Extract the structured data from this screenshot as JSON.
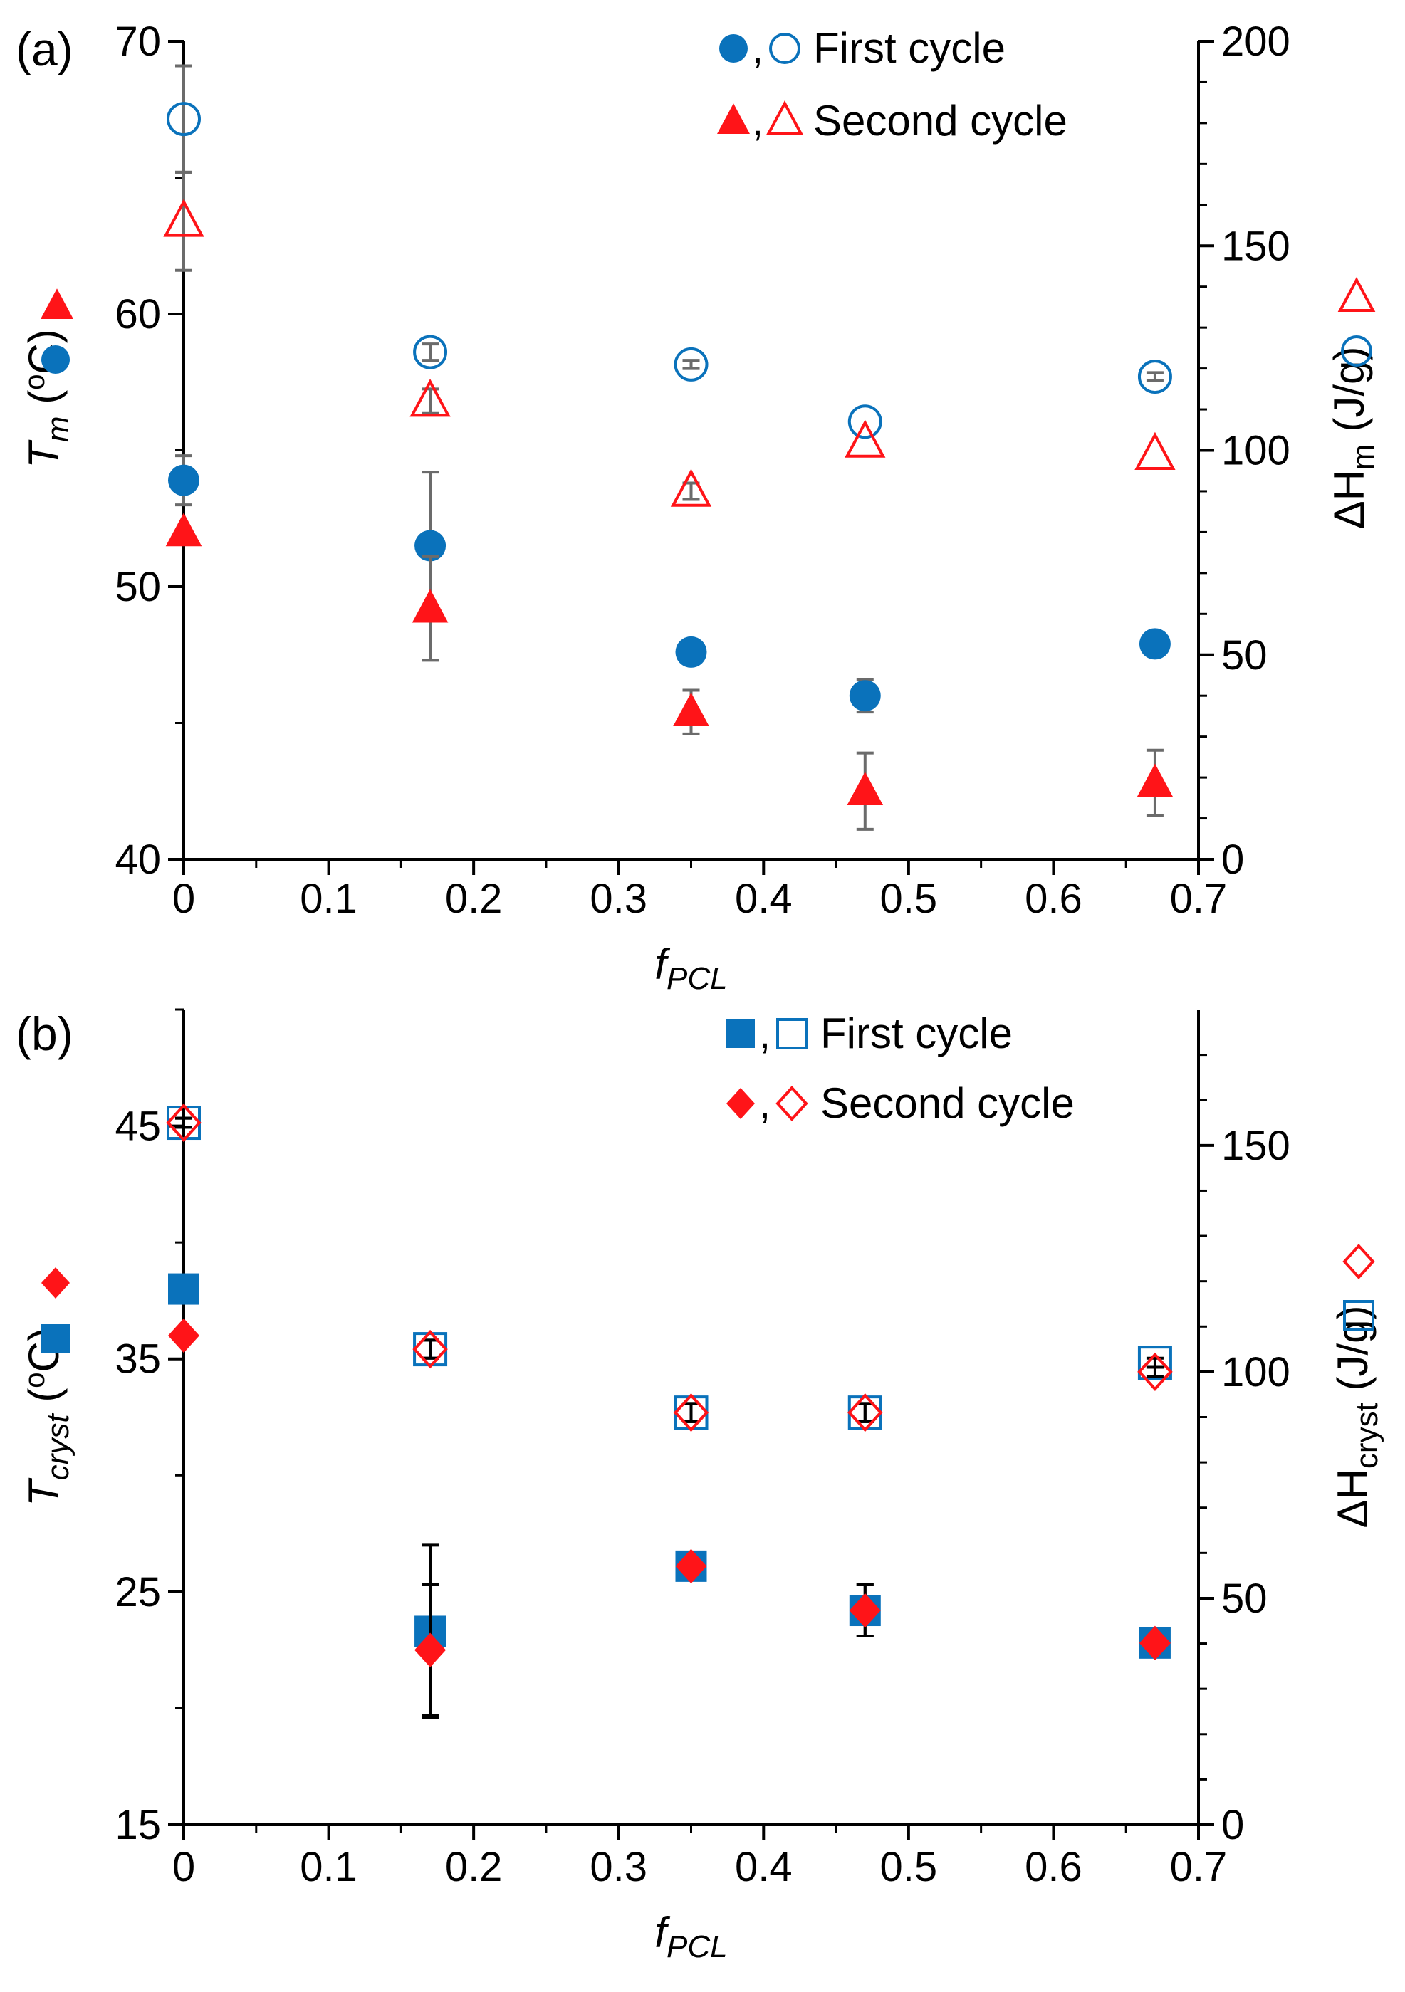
{
  "colors": {
    "blue": "#0a72bb",
    "red": "#ff1418",
    "axis": "#000000",
    "errorbar_top": "#6b6b6b",
    "errorbar_bottom": "#000000"
  },
  "chart_data": [
    {
      "panel_label": "(a)",
      "type": "scatter",
      "x_axis": {
        "label_main": "f",
        "label_sub": "PCL",
        "range": [
          0,
          0.7
        ],
        "ticks": [
          "0",
          "0.1",
          "0.2",
          "0.3",
          "0.4",
          "0.5",
          "0.6",
          "0.7"
        ]
      },
      "y_left": {
        "label_main": "T",
        "label_sub": "m",
        "label_unit_before": " (",
        "label_unit_sup": "o",
        "label_unit_after": "C)",
        "range": [
          40,
          70
        ],
        "ticks": [
          "40",
          "50",
          "60",
          "70"
        ]
      },
      "y_right": {
        "label_main": "ΔH",
        "label_sub": "m",
        "label_unit": " (J/g)",
        "range": [
          0,
          200
        ],
        "ticks": [
          "0",
          "50",
          "100",
          "150",
          "200"
        ]
      },
      "legend": [
        {
          "text": "First cycle",
          "filled_marker": "circle",
          "open_marker": "circle",
          "color": "blue"
        },
        {
          "text": "Second cycle",
          "filled_marker": "triangle",
          "open_marker": "triangle",
          "color": "red"
        }
      ],
      "series": [
        {
          "axis": "left",
          "marker": "circle",
          "filled": true,
          "color": "blue",
          "x": [
            0,
            0.17,
            0.35,
            0.47,
            0.67
          ],
          "y": [
            53.9,
            51.5,
            47.6,
            46.0,
            47.9
          ],
          "err": [
            0.9,
            2.7,
            0,
            0.6,
            0
          ]
        },
        {
          "axis": "left",
          "marker": "triangle",
          "filled": true,
          "color": "red",
          "x": [
            0,
            0.17,
            0.35,
            0.47,
            0.67
          ],
          "y": [
            52.0,
            49.2,
            45.4,
            42.5,
            42.8
          ],
          "err": [
            0,
            1.9,
            0.8,
            1.4,
            1.2
          ]
        },
        {
          "axis": "right",
          "marker": "circle",
          "filled": false,
          "color": "blue",
          "x": [
            0,
            0.17,
            0.35,
            0.47,
            0.67
          ],
          "y": [
            181,
            124,
            121,
            107,
            118
          ],
          "err": [
            13,
            2,
            1,
            0,
            1
          ]
        },
        {
          "axis": "right",
          "marker": "triangle",
          "filled": false,
          "color": "red",
          "x": [
            0,
            0.17,
            0.35,
            0.47,
            0.67
          ],
          "y": [
            156,
            112,
            90,
            102,
            99
          ],
          "err": [
            12,
            3,
            2,
            0,
            0
          ]
        }
      ]
    },
    {
      "panel_label": "(b)",
      "type": "scatter",
      "x_axis": {
        "label_main": "f",
        "label_sub": "PCL",
        "range": [
          0,
          0.7
        ],
        "ticks": [
          "0",
          "0.1",
          "0.2",
          "0.3",
          "0.4",
          "0.5",
          "0.6",
          "0.7"
        ]
      },
      "y_left": {
        "label_main": "T",
        "label_sub": "cryst",
        "label_unit_before": " (",
        "label_unit_sup": "o",
        "label_unit_after": "C)",
        "range": [
          15,
          50
        ],
        "ticks": [
          "15",
          "25",
          "35",
          "45"
        ]
      },
      "y_right": {
        "label_main": "ΔH",
        "label_sub": "cryst",
        "label_unit": " (J/g)",
        "range": [
          0,
          180
        ],
        "ticks": [
          "0",
          "50",
          "100",
          "150"
        ]
      },
      "legend": [
        {
          "text": "First cycle",
          "filled_marker": "square",
          "open_marker": "square",
          "color": "blue"
        },
        {
          "text": "Second cycle",
          "filled_marker": "diamond",
          "open_marker": "diamond",
          "color": "red"
        }
      ],
      "series": [
        {
          "axis": "left",
          "marker": "square",
          "filled": true,
          "color": "blue",
          "x": [
            0,
            0.17,
            0.35,
            0.47,
            0.67
          ],
          "y": [
            38.0,
            23.3,
            26.1,
            24.2,
            22.8
          ],
          "err": [
            0,
            3.7,
            0,
            1.1,
            0
          ]
        },
        {
          "axis": "left",
          "marker": "diamond",
          "filled": true,
          "color": "red",
          "x": [
            0,
            0.17,
            0.35,
            0.47,
            0.67
          ],
          "y": [
            36.0,
            22.5,
            26.1,
            24.2,
            22.8
          ],
          "err": [
            0,
            2.8,
            0,
            1.1,
            0
          ]
        },
        {
          "axis": "right",
          "marker": "square",
          "filled": false,
          "color": "blue",
          "x": [
            0,
            0.17,
            0.35,
            0.47,
            0.67
          ],
          "y": [
            155,
            105,
            91,
            91,
            102
          ],
          "err": [
            1,
            2,
            2,
            2,
            1
          ]
        },
        {
          "axis": "right",
          "marker": "diamond",
          "filled": false,
          "color": "red",
          "x": [
            0,
            0.17,
            0.35,
            0.47,
            0.67
          ],
          "y": [
            155,
            105,
            91,
            91,
            100
          ],
          "err": [
            1,
            2,
            2,
            2,
            1
          ]
        }
      ]
    }
  ]
}
